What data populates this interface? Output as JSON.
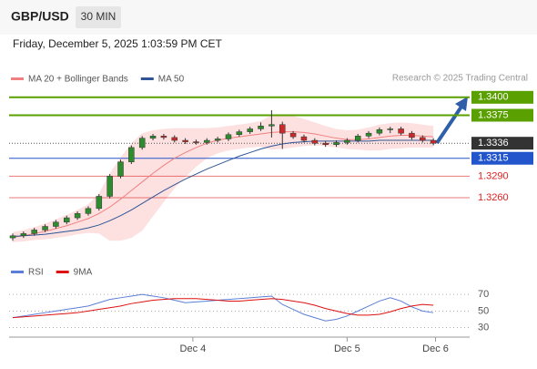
{
  "header": {
    "symbol": "GBP/USD",
    "interval": "30 MIN",
    "datetime": "Friday, December 5, 2025 1:03:59 PM CET"
  },
  "chart_data": [
    {
      "type": "candlestick",
      "legend": [
        {
          "name": "MA 20 + Bollinger Bands",
          "color": "#f08080"
        },
        {
          "name": "MA 50",
          "color": "#2f5597"
        }
      ],
      "credit": "Research © 2025 Trading Central",
      "ylim": [
        1.318,
        1.3415
      ],
      "xlim": [
        0,
        40.5
      ],
      "xticks": [
        {
          "value": 16.7,
          "label": "Dec 4"
        },
        {
          "value": 31,
          "label": "Dec 5"
        },
        {
          "value": 39.2,
          "label": "Dec 6"
        }
      ],
      "levels": [
        {
          "value": 1.34,
          "label": "1.3400",
          "color": "#5aa000",
          "style": "box"
        },
        {
          "value": 1.3375,
          "label": "1.3375",
          "color": "#5aa000",
          "style": "box"
        },
        {
          "value": 1.3336,
          "label": "1.3336",
          "color": "#333333",
          "style": "dotted"
        },
        {
          "value": 1.3315,
          "label": "1.3315",
          "color": "#2255cc",
          "style": "box"
        },
        {
          "value": 1.329,
          "label": "1.3290",
          "color": "#dd2222",
          "style": "text"
        },
        {
          "value": 1.326,
          "label": "1.3260",
          "color": "#dd2222",
          "style": "text"
        }
      ],
      "candles": [
        [
          1.3204,
          1.321,
          1.32,
          1.3207
        ],
        [
          1.3207,
          1.3213,
          1.3204,
          1.321
        ],
        [
          1.321,
          1.3218,
          1.3207,
          1.3215
        ],
        [
          1.3215,
          1.3223,
          1.3212,
          1.322
        ],
        [
          1.322,
          1.3229,
          1.3217,
          1.3226
        ],
        [
          1.3226,
          1.3235,
          1.3223,
          1.3232
        ],
        [
          1.3232,
          1.3241,
          1.3229,
          1.3238
        ],
        [
          1.3238,
          1.3248,
          1.3235,
          1.3245
        ],
        [
          1.3245,
          1.3265,
          1.3242,
          1.3262
        ],
        [
          1.3262,
          1.3293,
          1.3259,
          1.329
        ],
        [
          1.329,
          1.3313,
          1.3287,
          1.331
        ],
        [
          1.331,
          1.3333,
          1.3307,
          1.333
        ],
        [
          1.333,
          1.3346,
          1.3327,
          1.3343
        ],
        [
          1.3343,
          1.3349,
          1.334,
          1.3346
        ],
        [
          1.3346,
          1.3349,
          1.3341,
          1.3344
        ],
        [
          1.3344,
          1.3347,
          1.3337,
          1.334
        ],
        [
          1.334,
          1.3343,
          1.3335,
          1.3338
        ],
        [
          1.3338,
          1.3341,
          1.3334,
          1.3337
        ],
        [
          1.3337,
          1.3343,
          1.3334,
          1.334
        ],
        [
          1.334,
          1.3345,
          1.3337,
          1.3342
        ],
        [
          1.3342,
          1.3351,
          1.3339,
          1.3348
        ],
        [
          1.3348,
          1.3355,
          1.3345,
          1.3352
        ],
        [
          1.3352,
          1.3359,
          1.3349,
          1.3356
        ],
        [
          1.3356,
          1.3365,
          1.3353,
          1.336
        ],
        [
          1.336,
          1.3382,
          1.3344,
          1.3362
        ],
        [
          1.3362,
          1.3366,
          1.3328,
          1.335
        ],
        [
          1.335,
          1.3353,
          1.3342,
          1.3345
        ],
        [
          1.3345,
          1.3348,
          1.3337,
          1.334
        ],
        [
          1.334,
          1.3343,
          1.3333,
          1.3336
        ],
        [
          1.3336,
          1.3339,
          1.3331,
          1.3334
        ],
        [
          1.3334,
          1.334,
          1.3331,
          1.3337
        ],
        [
          1.3337,
          1.3343,
          1.3334,
          1.334
        ],
        [
          1.334,
          1.3349,
          1.3337,
          1.3346
        ],
        [
          1.3346,
          1.3353,
          1.3343,
          1.335
        ],
        [
          1.335,
          1.3358,
          1.3347,
          1.3355
        ],
        [
          1.3355,
          1.3359,
          1.335,
          1.3356
        ],
        [
          1.3356,
          1.3359,
          1.3347,
          1.335
        ],
        [
          1.335,
          1.3353,
          1.3341,
          1.3344
        ],
        [
          1.3344,
          1.3347,
          1.3337,
          1.334
        ],
        [
          1.334,
          1.3343,
          1.3333,
          1.3336
        ]
      ],
      "ma20": [
        1.3205,
        1.3207,
        1.321,
        1.3213,
        1.3217,
        1.3221,
        1.3226,
        1.3231,
        1.3238,
        1.3247,
        1.3258,
        1.327,
        1.3282,
        1.3294,
        1.3305,
        1.3315,
        1.3323,
        1.333,
        1.3336,
        1.334,
        1.3343,
        1.3345,
        1.3347,
        1.3349,
        1.3351,
        1.3352,
        1.3352,
        1.3351,
        1.3349,
        1.3346,
        1.3343,
        1.3341,
        1.3341,
        1.3342,
        1.3344,
        1.3346,
        1.3347,
        1.3347,
        1.3346,
        1.3345
      ],
      "ma50": [
        1.3206,
        1.3207,
        1.3208,
        1.3209,
        1.3211,
        1.3213,
        1.3215,
        1.3218,
        1.3222,
        1.3228,
        1.3235,
        1.3243,
        1.3252,
        1.3261,
        1.327,
        1.3278,
        1.3286,
        1.3293,
        1.33,
        1.3306,
        1.3312,
        1.3318,
        1.3323,
        1.3328,
        1.3332,
        1.3335,
        1.3337,
        1.3338,
        1.3339,
        1.3339,
        1.3339,
        1.3339,
        1.3339,
        1.3339,
        1.334,
        1.334,
        1.334,
        1.334,
        1.334,
        1.334
      ],
      "band_upper": [
        1.3212,
        1.3215,
        1.3219,
        1.3224,
        1.323,
        1.3236,
        1.3243,
        1.3251,
        1.3266,
        1.3294,
        1.3316,
        1.3336,
        1.335,
        1.3354,
        1.3356,
        1.3357,
        1.3357,
        1.3357,
        1.3357,
        1.3358,
        1.336,
        1.3362,
        1.3364,
        1.3367,
        1.3375,
        1.3376,
        1.3374,
        1.337,
        1.3365,
        1.336,
        1.3356,
        1.3354,
        1.3355,
        1.3358,
        1.3362,
        1.3364,
        1.3365,
        1.3364,
        1.3362,
        1.336
      ],
      "band_lower": [
        1.3198,
        1.3199,
        1.3201,
        1.3202,
        1.3204,
        1.3206,
        1.3209,
        1.3211,
        1.321,
        1.32,
        1.32,
        1.3204,
        1.3214,
        1.3234,
        1.3254,
        1.3273,
        1.3289,
        1.3303,
        1.3315,
        1.3322,
        1.3326,
        1.3328,
        1.333,
        1.3331,
        1.3327,
        1.3328,
        1.333,
        1.3332,
        1.3333,
        1.3332,
        1.333,
        1.3328,
        1.3327,
        1.3326,
        1.3326,
        1.3328,
        1.3329,
        1.333,
        1.333,
        1.333
      ]
    },
    {
      "type": "line",
      "ylim": [
        24,
        90
      ],
      "yticks": [
        70,
        50,
        30
      ],
      "series": [
        {
          "name": "RSI",
          "color": "#5b7fd6",
          "values": [
            42,
            44,
            46,
            48,
            50,
            52,
            54,
            56,
            60,
            64,
            66,
            68,
            70,
            68,
            66,
            63,
            60,
            61,
            62,
            63,
            64,
            65,
            66,
            67,
            68,
            58,
            52,
            46,
            42,
            38,
            40,
            44,
            50,
            56,
            62,
            66,
            62,
            55,
            50,
            48
          ]
        },
        {
          "name": "9MA",
          "color": "#dd1111",
          "values": [
            42,
            43,
            44,
            45,
            46,
            47,
            48,
            50,
            52,
            54,
            56,
            59,
            61,
            63,
            64,
            65,
            65,
            65,
            64,
            63,
            62,
            62,
            63,
            64,
            65,
            64,
            62,
            60,
            57,
            53,
            50,
            47,
            45,
            45,
            46,
            49,
            53,
            56,
            58,
            57
          ]
        }
      ]
    }
  ]
}
